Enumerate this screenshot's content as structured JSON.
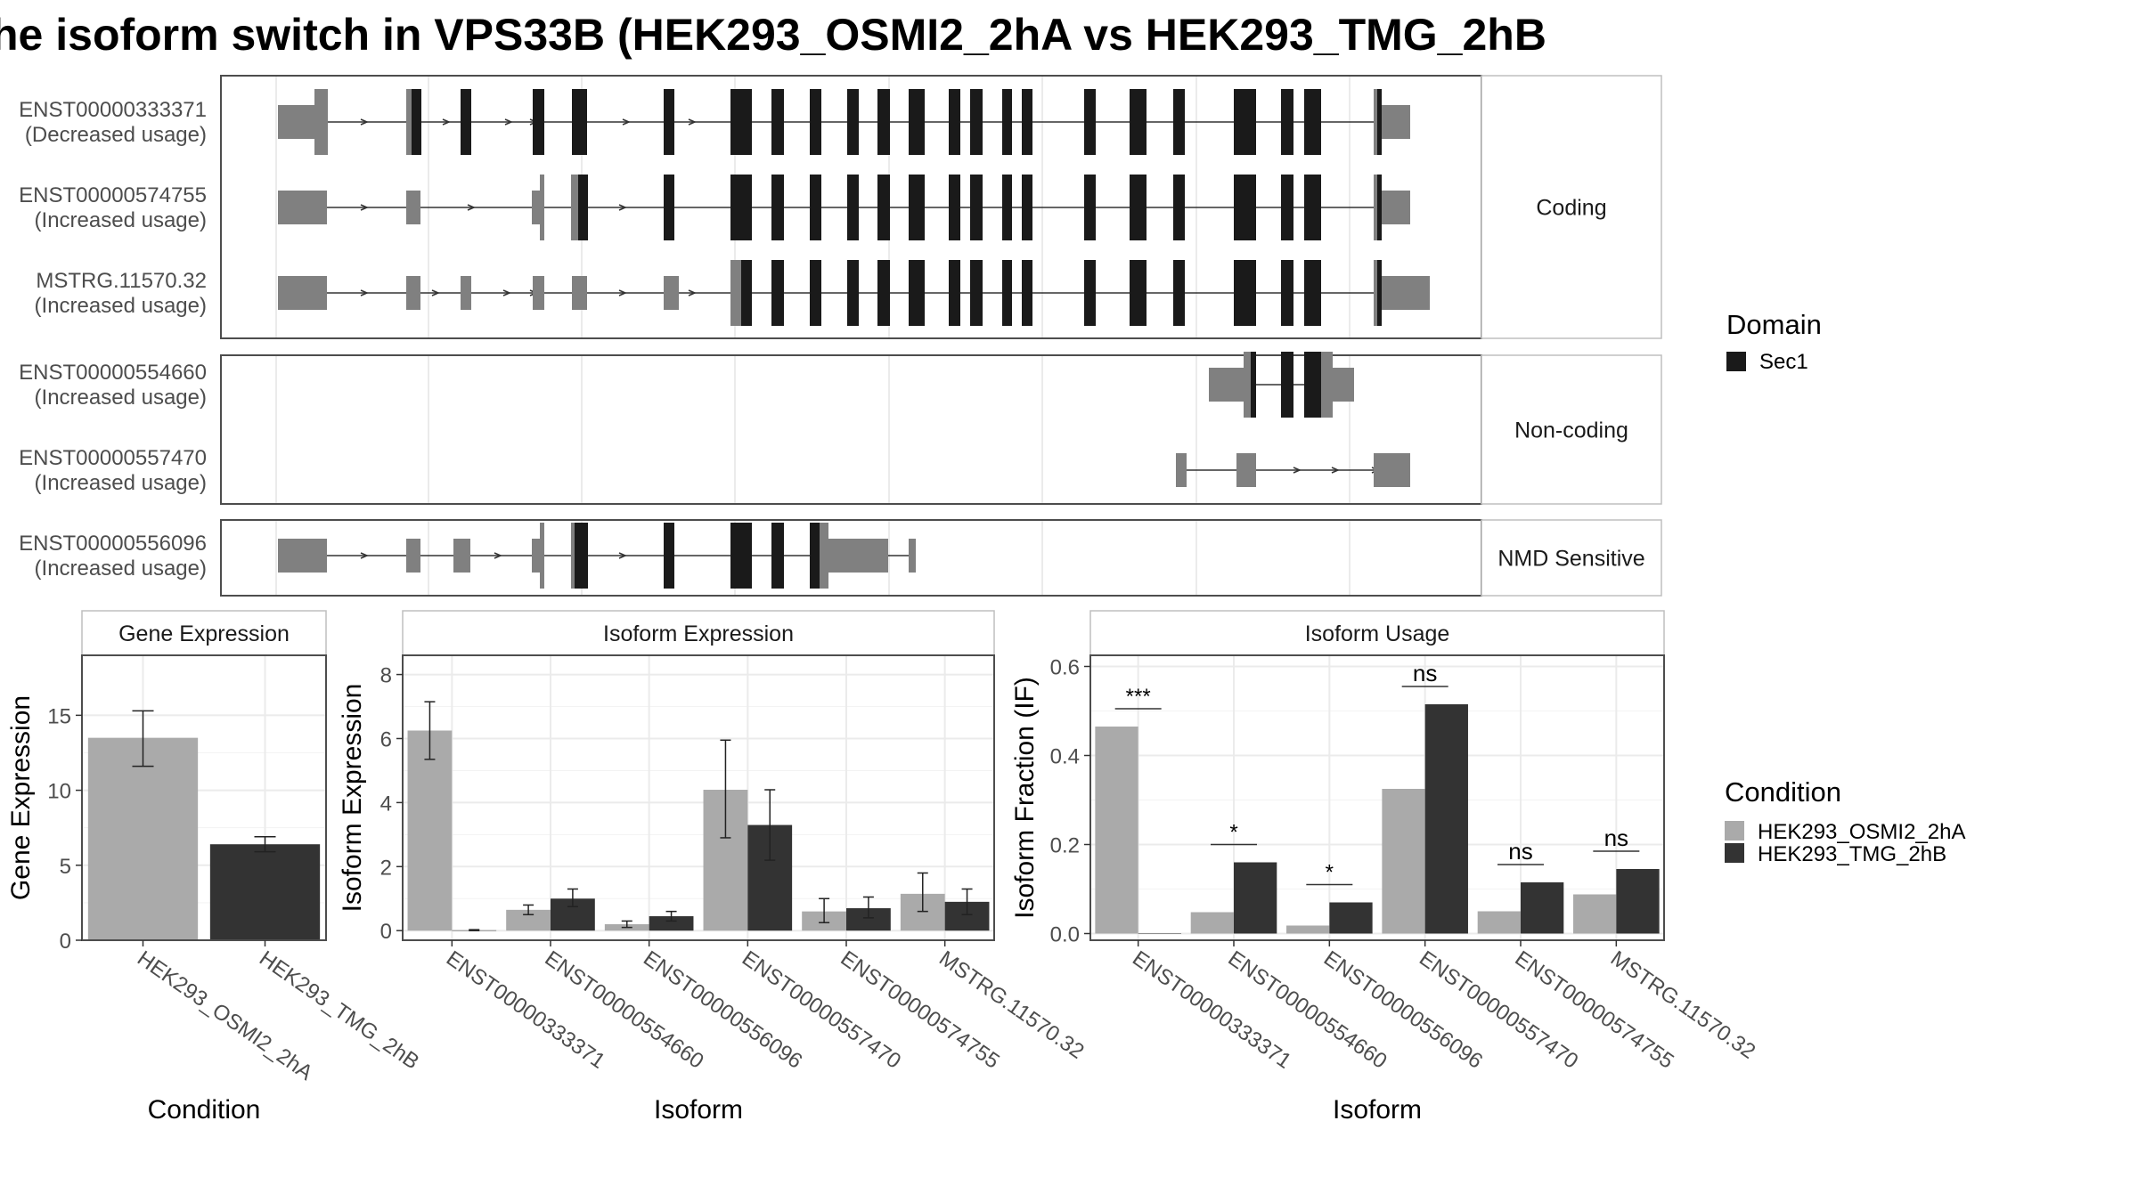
{
  "title": "he isoform switch in VPS33B (HEK293_OSMI2_2hA vs HEK293_TMG_2hB",
  "colors": {
    "utr": "#808080",
    "cds": "#1a1a1a",
    "cond1": "#aaaaaa",
    "cond2": "#333333",
    "grid": "#ebebeb",
    "border": "#4d4d4d",
    "strip_border": "#bfbfbf"
  },
  "structure": {
    "groups": [
      {
        "label": "Coding",
        "transcripts": [
          {
            "id": "ENST00000333371",
            "usage": "(Decreased usage)"
          },
          {
            "id": "ENST00000574755",
            "usage": "(Increased usage)"
          },
          {
            "id": "MSTRG.11570.32",
            "usage": "(Increased usage)"
          }
        ]
      },
      {
        "label": "Non-coding",
        "transcripts": [
          {
            "id": "ENST00000554660",
            "usage": "(Increased usage)"
          },
          {
            "id": "ENST00000557470",
            "usage": "(Increased usage)"
          }
        ]
      },
      {
        "label": "NMD Sensitive",
        "transcripts": [
          {
            "id": "ENST00000556096",
            "usage": "(Increased usage)"
          }
        ]
      }
    ]
  },
  "legends": {
    "domain": {
      "title": "Domain",
      "items": [
        {
          "label": "Sec1",
          "color": "#1a1a1a"
        }
      ]
    },
    "condition": {
      "title": "Condition",
      "items": [
        {
          "label": "HEK293_OSMI2_2hA",
          "color": "#aaaaaa"
        },
        {
          "label": "HEK293_TMG_2hB",
          "color": "#333333"
        }
      ]
    }
  },
  "chart_data": [
    {
      "type": "bar",
      "strip": "Gene Expression",
      "xlabel": "Condition",
      "ylabel": "Gene Expression",
      "ylim": [
        0,
        19
      ],
      "yticks": [
        0,
        5,
        10,
        15
      ],
      "categories": [
        "HEK293_OSMI2_2hA",
        "HEK293_TMG_2hB"
      ],
      "values": [
        13.5,
        6.4
      ],
      "errors": [
        [
          11.6,
          15.3
        ],
        [
          5.9,
          6.9
        ]
      ],
      "colors": [
        "#aaaaaa",
        "#333333"
      ]
    },
    {
      "type": "bar",
      "strip": "Isoform Expression",
      "xlabel": "Isoform",
      "ylabel": "Isoform Expression",
      "ylim": [
        -0.3,
        8.6
      ],
      "yticks": [
        0,
        2,
        4,
        6,
        8
      ],
      "categories": [
        "ENST00000333371",
        "ENST00000554660",
        "ENST00000556096",
        "ENST00000557470",
        "ENST00000574755",
        "MSTRG.11570.32"
      ],
      "series": [
        {
          "name": "HEK293_OSMI2_2hA",
          "values": [
            6.25,
            0.65,
            0.2,
            4.4,
            0.6,
            1.15
          ],
          "errors": [
            [
              5.35,
              7.15
            ],
            [
              0.5,
              0.8
            ],
            [
              0.1,
              0.3
            ],
            [
              2.9,
              5.95
            ],
            [
              0.25,
              1.0
            ],
            [
              0.6,
              1.8
            ]
          ]
        },
        {
          "name": "HEK293_TMG_2hB",
          "values": [
            0.01,
            1.0,
            0.45,
            3.3,
            0.7,
            0.9
          ],
          "errors": [
            [
              0.0,
              0.03
            ],
            [
              0.75,
              1.3
            ],
            [
              0.3,
              0.6
            ],
            [
              2.2,
              4.4
            ],
            [
              0.4,
              1.05
            ],
            [
              0.5,
              1.3
            ]
          ]
        }
      ]
    },
    {
      "type": "bar",
      "strip": "Isoform Usage",
      "xlabel": "Isoform",
      "ylabel": "Isoform Fraction (IF)",
      "ylim": [
        -0.015,
        0.625
      ],
      "yticks": [
        "0.0",
        "0.2",
        "0.4",
        "0.6"
      ],
      "categories": [
        "ENST00000333371",
        "ENST00000554660",
        "ENST00000556096",
        "ENST00000557470",
        "ENST00000574755",
        "MSTRG.11570.32"
      ],
      "series": [
        {
          "name": "HEK293_OSMI2_2hA",
          "values": [
            0.465,
            0.048,
            0.018,
            0.325,
            0.05,
            0.088
          ]
        },
        {
          "name": "HEK293_TMG_2hB",
          "values": [
            0.0,
            0.16,
            0.07,
            0.515,
            0.115,
            0.145
          ]
        }
      ],
      "significance": [
        "***",
        "*",
        "*",
        "ns",
        "ns",
        "ns"
      ]
    }
  ]
}
